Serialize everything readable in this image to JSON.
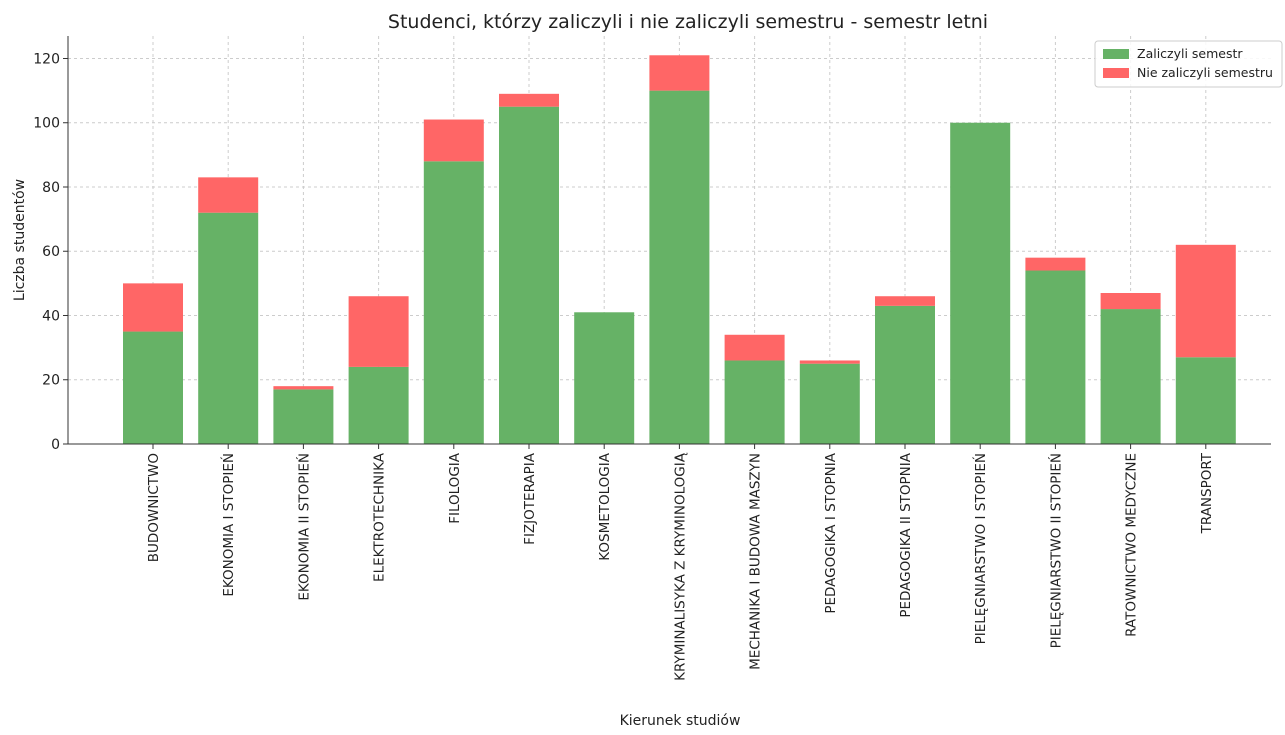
{
  "chart_data": {
    "type": "bar",
    "stacked": true,
    "title": "Studenci, którzy zaliczyli i nie zaliczyli semestru - semestr letni",
    "xlabel": "Kierunek studiów",
    "ylabel": "Liczba studentów",
    "ylim": [
      0,
      127
    ],
    "yticks": [
      0,
      20,
      40,
      60,
      80,
      100,
      120
    ],
    "grid": true,
    "legend_position": "top-right",
    "categories": [
      "BUDOWNICTWO",
      "EKONOMIA I STOPIEŃ",
      "EKONOMIA II STOPIEŃ",
      "ELEKTROTECHNIKA",
      "FILOLOGIA",
      "FIZJOTERAPIA",
      "KOSMETOLOGIA",
      "KRYMINALISYKA Z KRYMINOLOGIĄ",
      "MECHANIKA I BUDOWA  MASZYN",
      "PEDAGOGIKA I STOPNIA",
      "PEDAGOGIKA II STOPNIA",
      "PIELĘGNIARSTWO I STOPIEŃ",
      "PIELĘGNIARSTWO II STOPIEŃ",
      "RATOWNICTWO MEDYCZNE",
      "TRANSPORT"
    ],
    "series": [
      {
        "name": "Zaliczyli semestr",
        "color": "#66b266",
        "values": [
          35,
          72,
          17,
          24,
          88,
          105,
          41,
          110,
          26,
          25,
          43,
          100,
          54,
          42,
          27
        ]
      },
      {
        "name": "Nie zaliczyli semestru",
        "color": "#ff6666",
        "values": [
          15,
          11,
          1,
          22,
          13,
          4,
          0,
          11,
          8,
          1,
          3,
          0,
          4,
          5,
          35
        ]
      }
    ]
  }
}
